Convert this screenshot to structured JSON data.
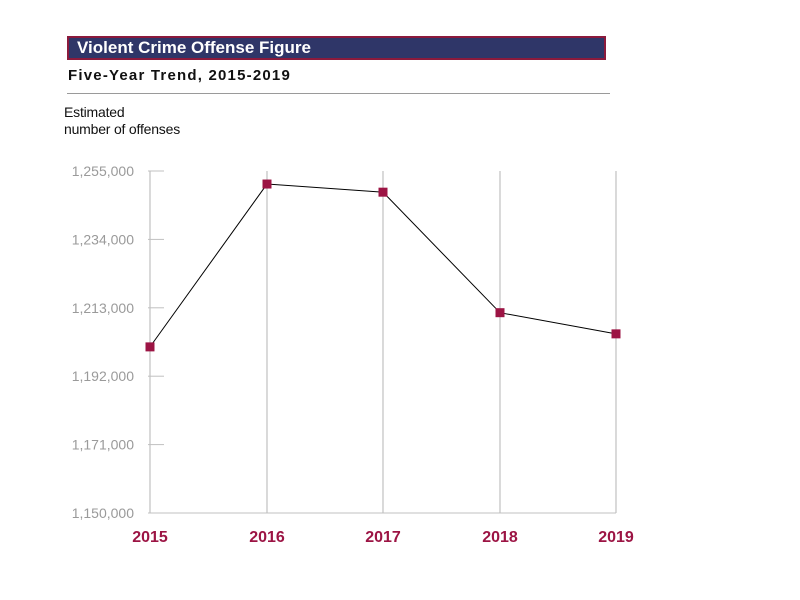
{
  "colors": {
    "title_bg": "#2f3668",
    "title_border": "#8b1a3c",
    "marker": "#9c1444",
    "line": "#000000",
    "grid": "#c0c0c0",
    "tick_text": "#9a9a9a",
    "x_text": "#9c1444"
  },
  "chart_data": {
    "type": "line",
    "title": "Violent Crime Offense Figure",
    "subtitle": "Five-Year Trend, 2015-2019",
    "ylabel_line1": "Estimated",
    "ylabel_line2": "number of offenses",
    "xlabel": "",
    "categories": [
      "2015",
      "2016",
      "2017",
      "2018",
      "2019"
    ],
    "series": [
      {
        "name": "Estimated number of offenses",
        "values": [
          1201000,
          1251000,
          1248500,
          1211500,
          1205000
        ]
      }
    ],
    "yticks": [
      1150000,
      1171000,
      1192000,
      1213000,
      1234000,
      1255000
    ],
    "ytick_labels": [
      "1,150,000",
      "1,171,000",
      "1,192,000",
      "1,213,000",
      "1,234,000",
      "1,255,000"
    ],
    "ylim": [
      1150000,
      1255000
    ],
    "grid": "vertical",
    "legend": "none"
  }
}
